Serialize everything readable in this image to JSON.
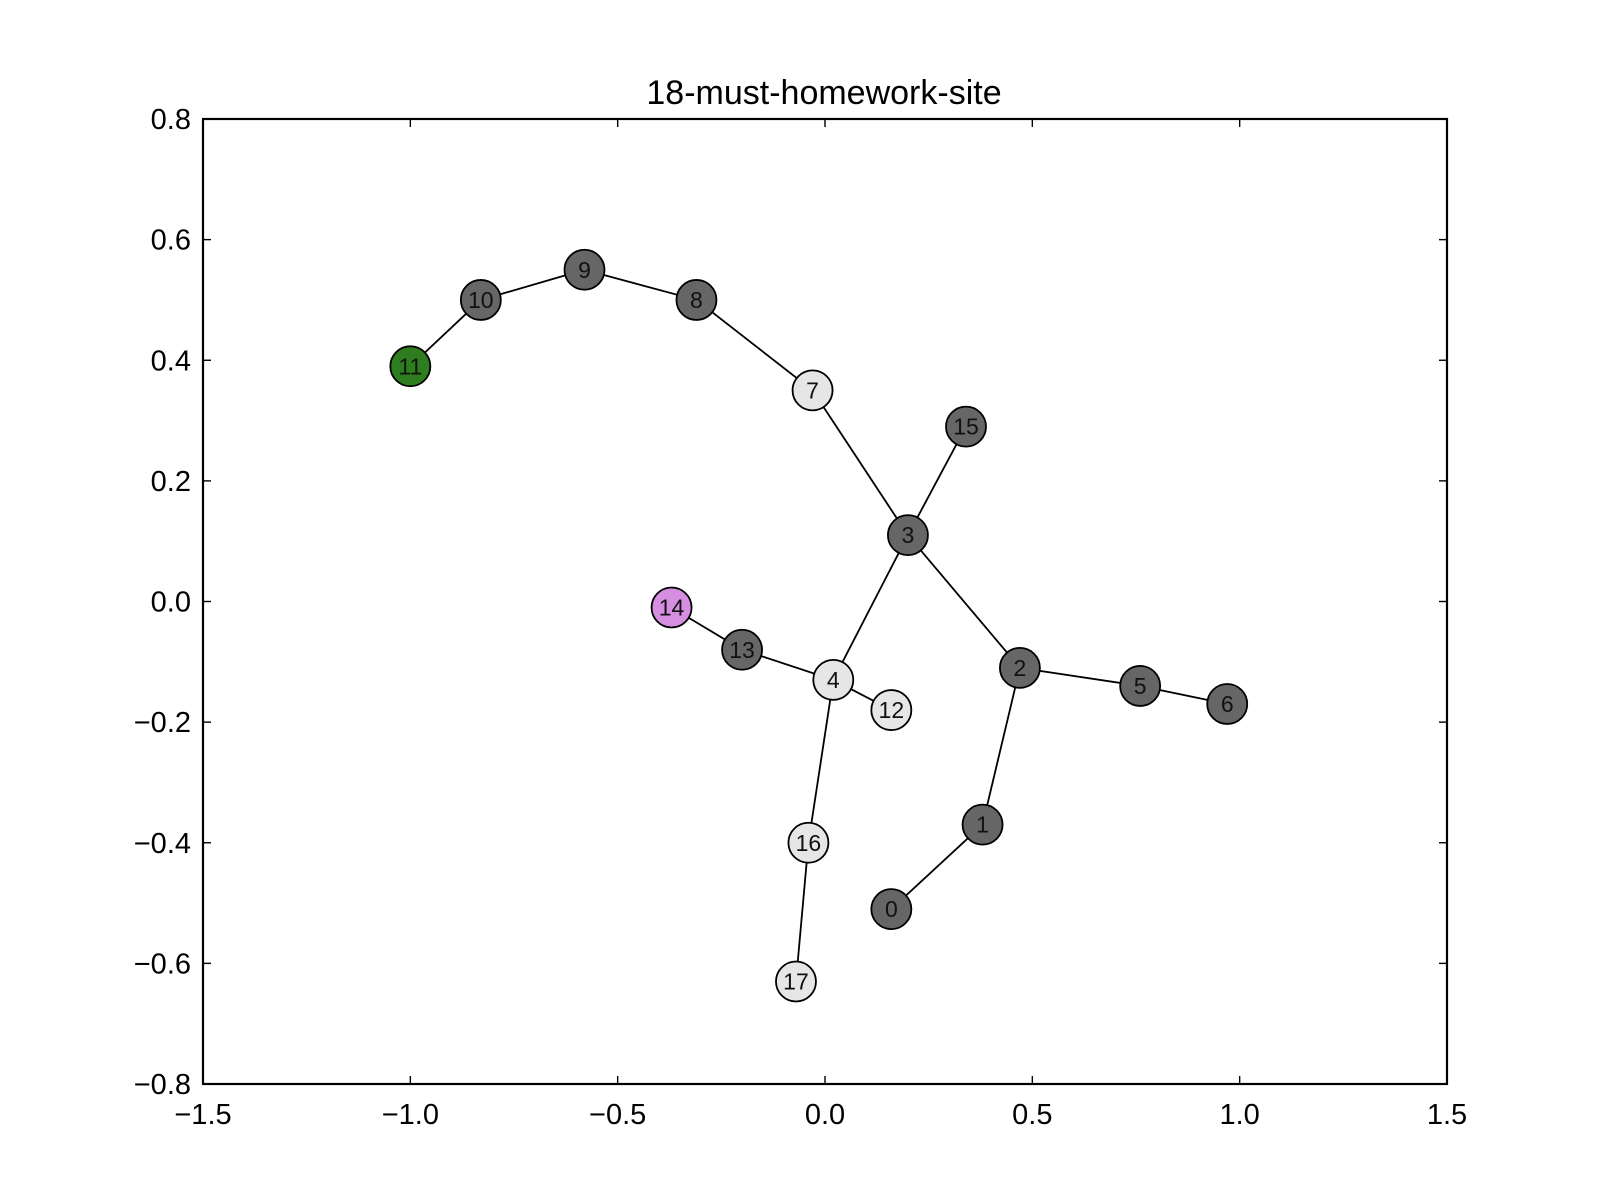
{
  "chart_data": {
    "type": "network",
    "title": "18-must-homework-site",
    "xlim": [
      -1.5,
      1.5
    ],
    "ylim": [
      -0.8,
      0.8
    ],
    "x_ticks": [
      -1.5,
      -1.0,
      -0.5,
      0.0,
      0.5,
      1.0,
      1.5
    ],
    "x_tick_labels": [
      "−1.5",
      "−1.0",
      "−0.5",
      "0.0",
      "0.5",
      "1.0",
      "1.5"
    ],
    "y_ticks": [
      0.8,
      0.6,
      0.4,
      0.2,
      0.0,
      -0.2,
      -0.4,
      -0.6,
      -0.8
    ],
    "y_tick_labels": [
      "0.8",
      "0.6",
      "0.4",
      "0.2",
      "0.0",
      "−0.2",
      "−0.4",
      "−0.6",
      "−0.8"
    ],
    "grid": false,
    "colors": {
      "dark": "#666666",
      "light": "#e6e6e6",
      "green": "#2e7d1e",
      "violet": "#d58ee0"
    },
    "nodes": [
      {
        "id": "0",
        "x": 0.16,
        "y": -0.51,
        "color": "dark"
      },
      {
        "id": "1",
        "x": 0.38,
        "y": -0.37,
        "color": "dark"
      },
      {
        "id": "2",
        "x": 0.47,
        "y": -0.11,
        "color": "dark"
      },
      {
        "id": "3",
        "x": 0.2,
        "y": 0.11,
        "color": "dark"
      },
      {
        "id": "4",
        "x": 0.02,
        "y": -0.13,
        "color": "light"
      },
      {
        "id": "5",
        "x": 0.76,
        "y": -0.14,
        "color": "dark"
      },
      {
        "id": "6",
        "x": 0.97,
        "y": -0.17,
        "color": "dark"
      },
      {
        "id": "7",
        "x": -0.03,
        "y": 0.35,
        "color": "light"
      },
      {
        "id": "8",
        "x": -0.31,
        "y": 0.5,
        "color": "dark"
      },
      {
        "id": "9",
        "x": -0.58,
        "y": 0.55,
        "color": "dark"
      },
      {
        "id": "10",
        "x": -0.83,
        "y": 0.5,
        "color": "dark"
      },
      {
        "id": "11",
        "x": -1.0,
        "y": 0.39,
        "color": "green"
      },
      {
        "id": "12",
        "x": 0.16,
        "y": -0.18,
        "color": "light"
      },
      {
        "id": "13",
        "x": -0.2,
        "y": -0.08,
        "color": "dark"
      },
      {
        "id": "14",
        "x": -0.37,
        "y": -0.01,
        "color": "violet"
      },
      {
        "id": "15",
        "x": 0.34,
        "y": 0.29,
        "color": "dark"
      },
      {
        "id": "16",
        "x": -0.04,
        "y": -0.4,
        "color": "light"
      },
      {
        "id": "17",
        "x": -0.07,
        "y": -0.63,
        "color": "light"
      }
    ],
    "edges": [
      [
        "0",
        "1"
      ],
      [
        "1",
        "2"
      ],
      [
        "2",
        "3"
      ],
      [
        "2",
        "5"
      ],
      [
        "5",
        "6"
      ],
      [
        "3",
        "15"
      ],
      [
        "3",
        "7"
      ],
      [
        "3",
        "4"
      ],
      [
        "7",
        "8"
      ],
      [
        "8",
        "9"
      ],
      [
        "9",
        "10"
      ],
      [
        "10",
        "11"
      ],
      [
        "4",
        "12"
      ],
      [
        "4",
        "13"
      ],
      [
        "13",
        "14"
      ],
      [
        "4",
        "16"
      ],
      [
        "16",
        "17"
      ]
    ]
  }
}
